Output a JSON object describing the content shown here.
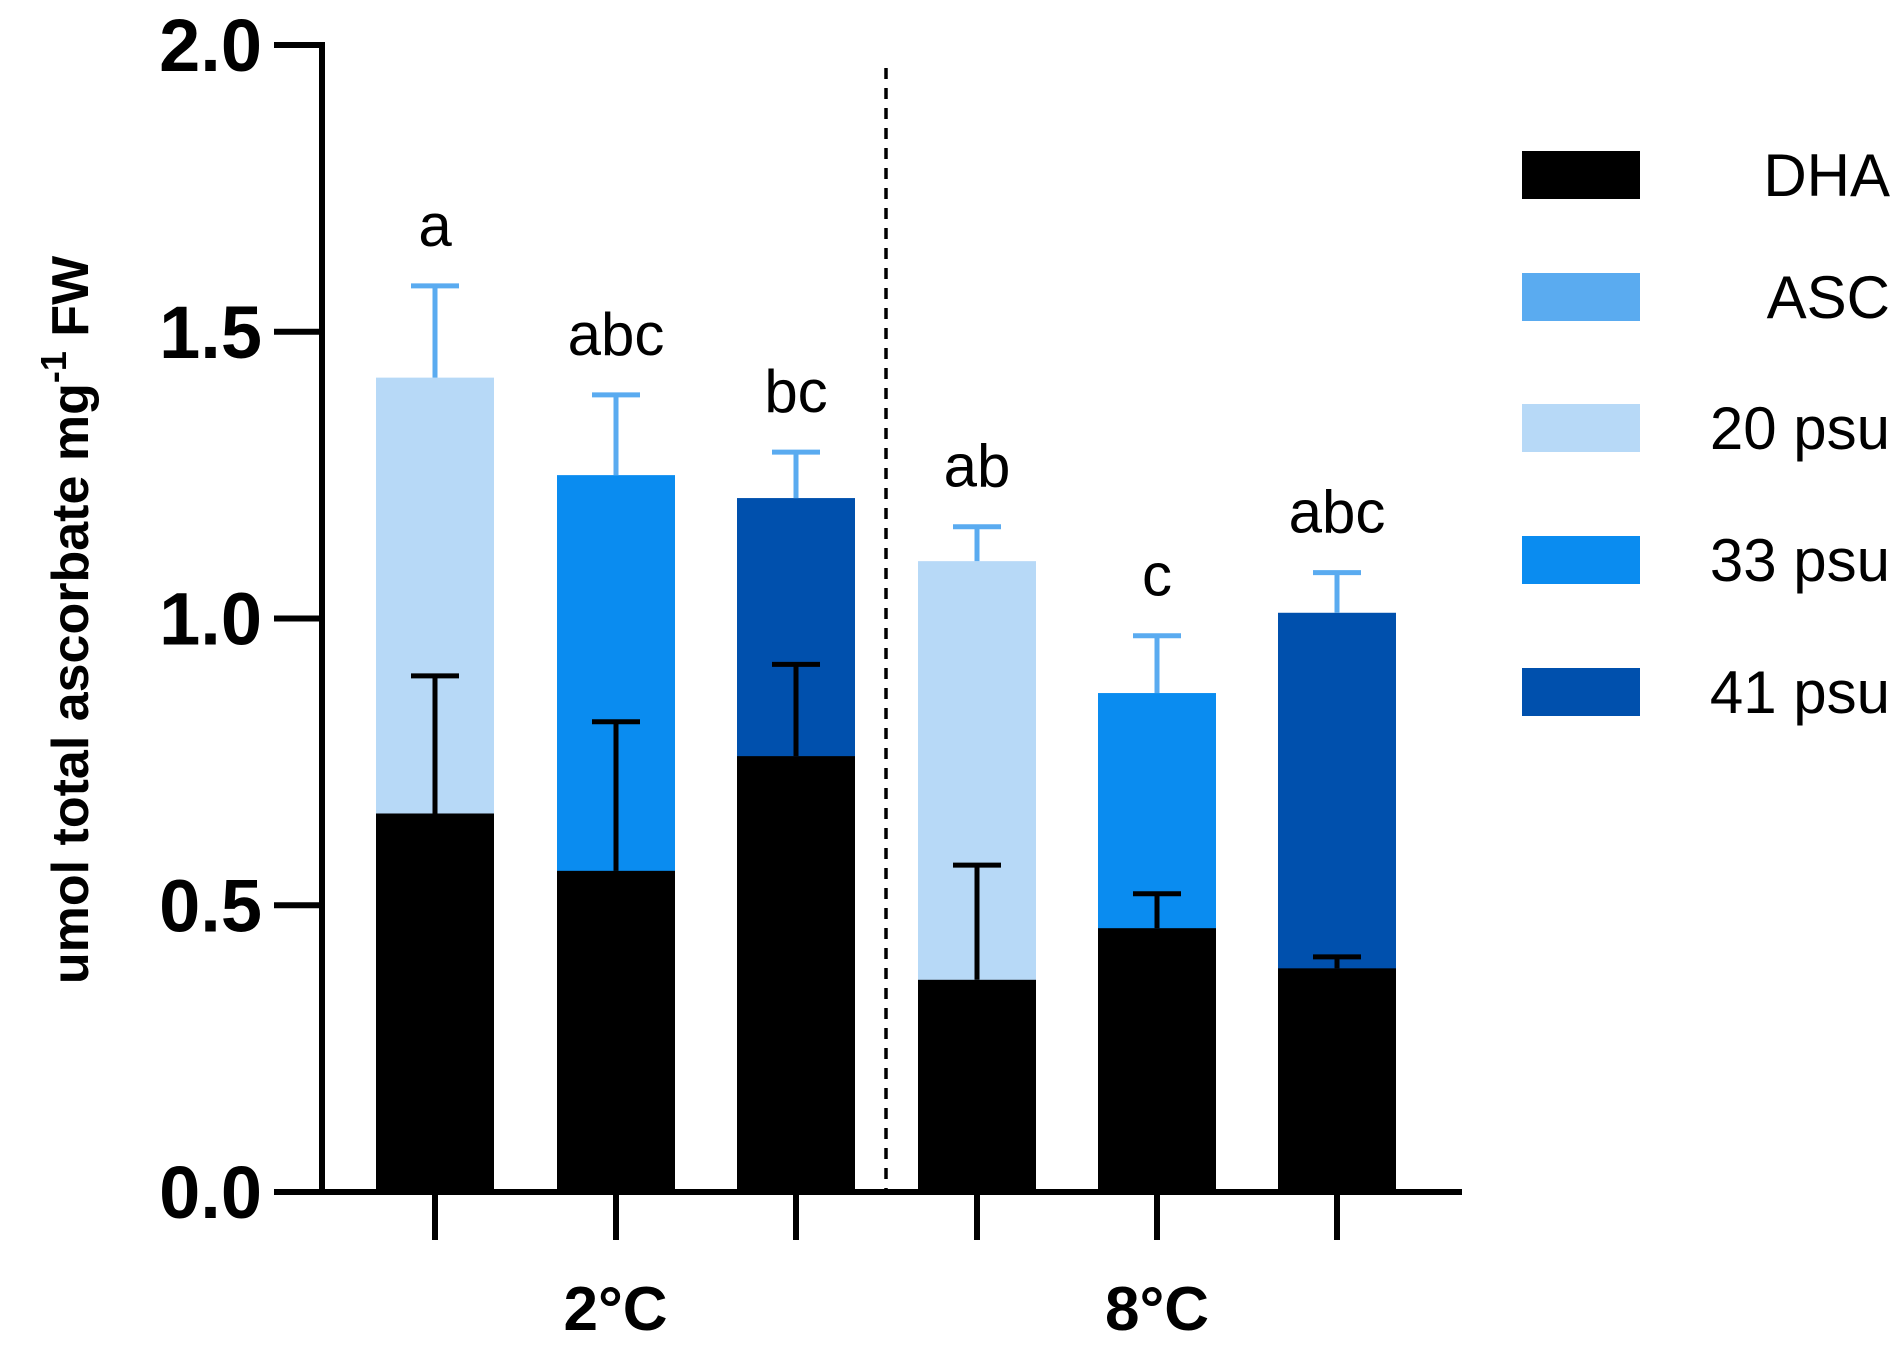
{
  "chart_data": {
    "type": "bar",
    "stacked": true,
    "title": "",
    "ylabel": "umol total ascorbate mg",
    "ylabel_superscript": "-1",
    "ylabel_suffix": " FW",
    "ylim": [
      0,
      2.0
    ],
    "yticks": [
      "0.0",
      "0.5",
      "1.0",
      "1.5",
      "2.0"
    ],
    "ytick_values": [
      0,
      0.5,
      1.0,
      1.5,
      2.0
    ],
    "groups": [
      {
        "label": "2°C",
        "bar_indices": [
          0,
          1,
          2
        ]
      },
      {
        "label": "8°C",
        "bar_indices": [
          3,
          4,
          5
        ]
      }
    ],
    "bars": [
      {
        "temperature": "2°C",
        "salinity": "20 psu",
        "dha": 0.66,
        "dha_err": 0.24,
        "total": 1.42,
        "total_err": 0.16,
        "sig": "a"
      },
      {
        "temperature": "2°C",
        "salinity": "33 psu",
        "dha": 0.56,
        "dha_err": 0.26,
        "total": 1.25,
        "total_err": 0.14,
        "sig": "abc"
      },
      {
        "temperature": "2°C",
        "salinity": "41 psu",
        "dha": 0.76,
        "dha_err": 0.16,
        "total": 1.21,
        "total_err": 0.08,
        "sig": "bc"
      },
      {
        "temperature": "8°C",
        "salinity": "20 psu",
        "dha": 0.37,
        "dha_err": 0.2,
        "total": 1.1,
        "total_err": 0.06,
        "sig": "ab"
      },
      {
        "temperature": "8°C",
        "salinity": "33 psu",
        "dha": 0.46,
        "dha_err": 0.06,
        "total": 0.87,
        "total_err": 0.1,
        "sig": "c"
      },
      {
        "temperature": "8°C",
        "salinity": "41 psu",
        "dha": 0.39,
        "dha_err": 0.02,
        "total": 1.01,
        "total_err": 0.07,
        "sig": "abc"
      }
    ],
    "legend": {
      "position": "right",
      "entries": [
        {
          "label": "DHA",
          "color": "#000000"
        },
        {
          "label": "ASC",
          "color": "#5aabf0"
        },
        {
          "label": "20 psu",
          "color": "#b7d9f7"
        },
        {
          "label": "33 psu",
          "color": "#0a8cf0"
        },
        {
          "label": "41 psu",
          "color": "#0050ad"
        }
      ]
    },
    "colors": {
      "dha": "#000000",
      "asc_error": "#5aabf0",
      "salinity": {
        "20 psu": "#b7d9f7",
        "33 psu": "#0a8cf0",
        "41 psu": "#0050ad"
      },
      "axis": "#000000"
    },
    "divider": "dashed line between 2°C and 8°C groups"
  }
}
